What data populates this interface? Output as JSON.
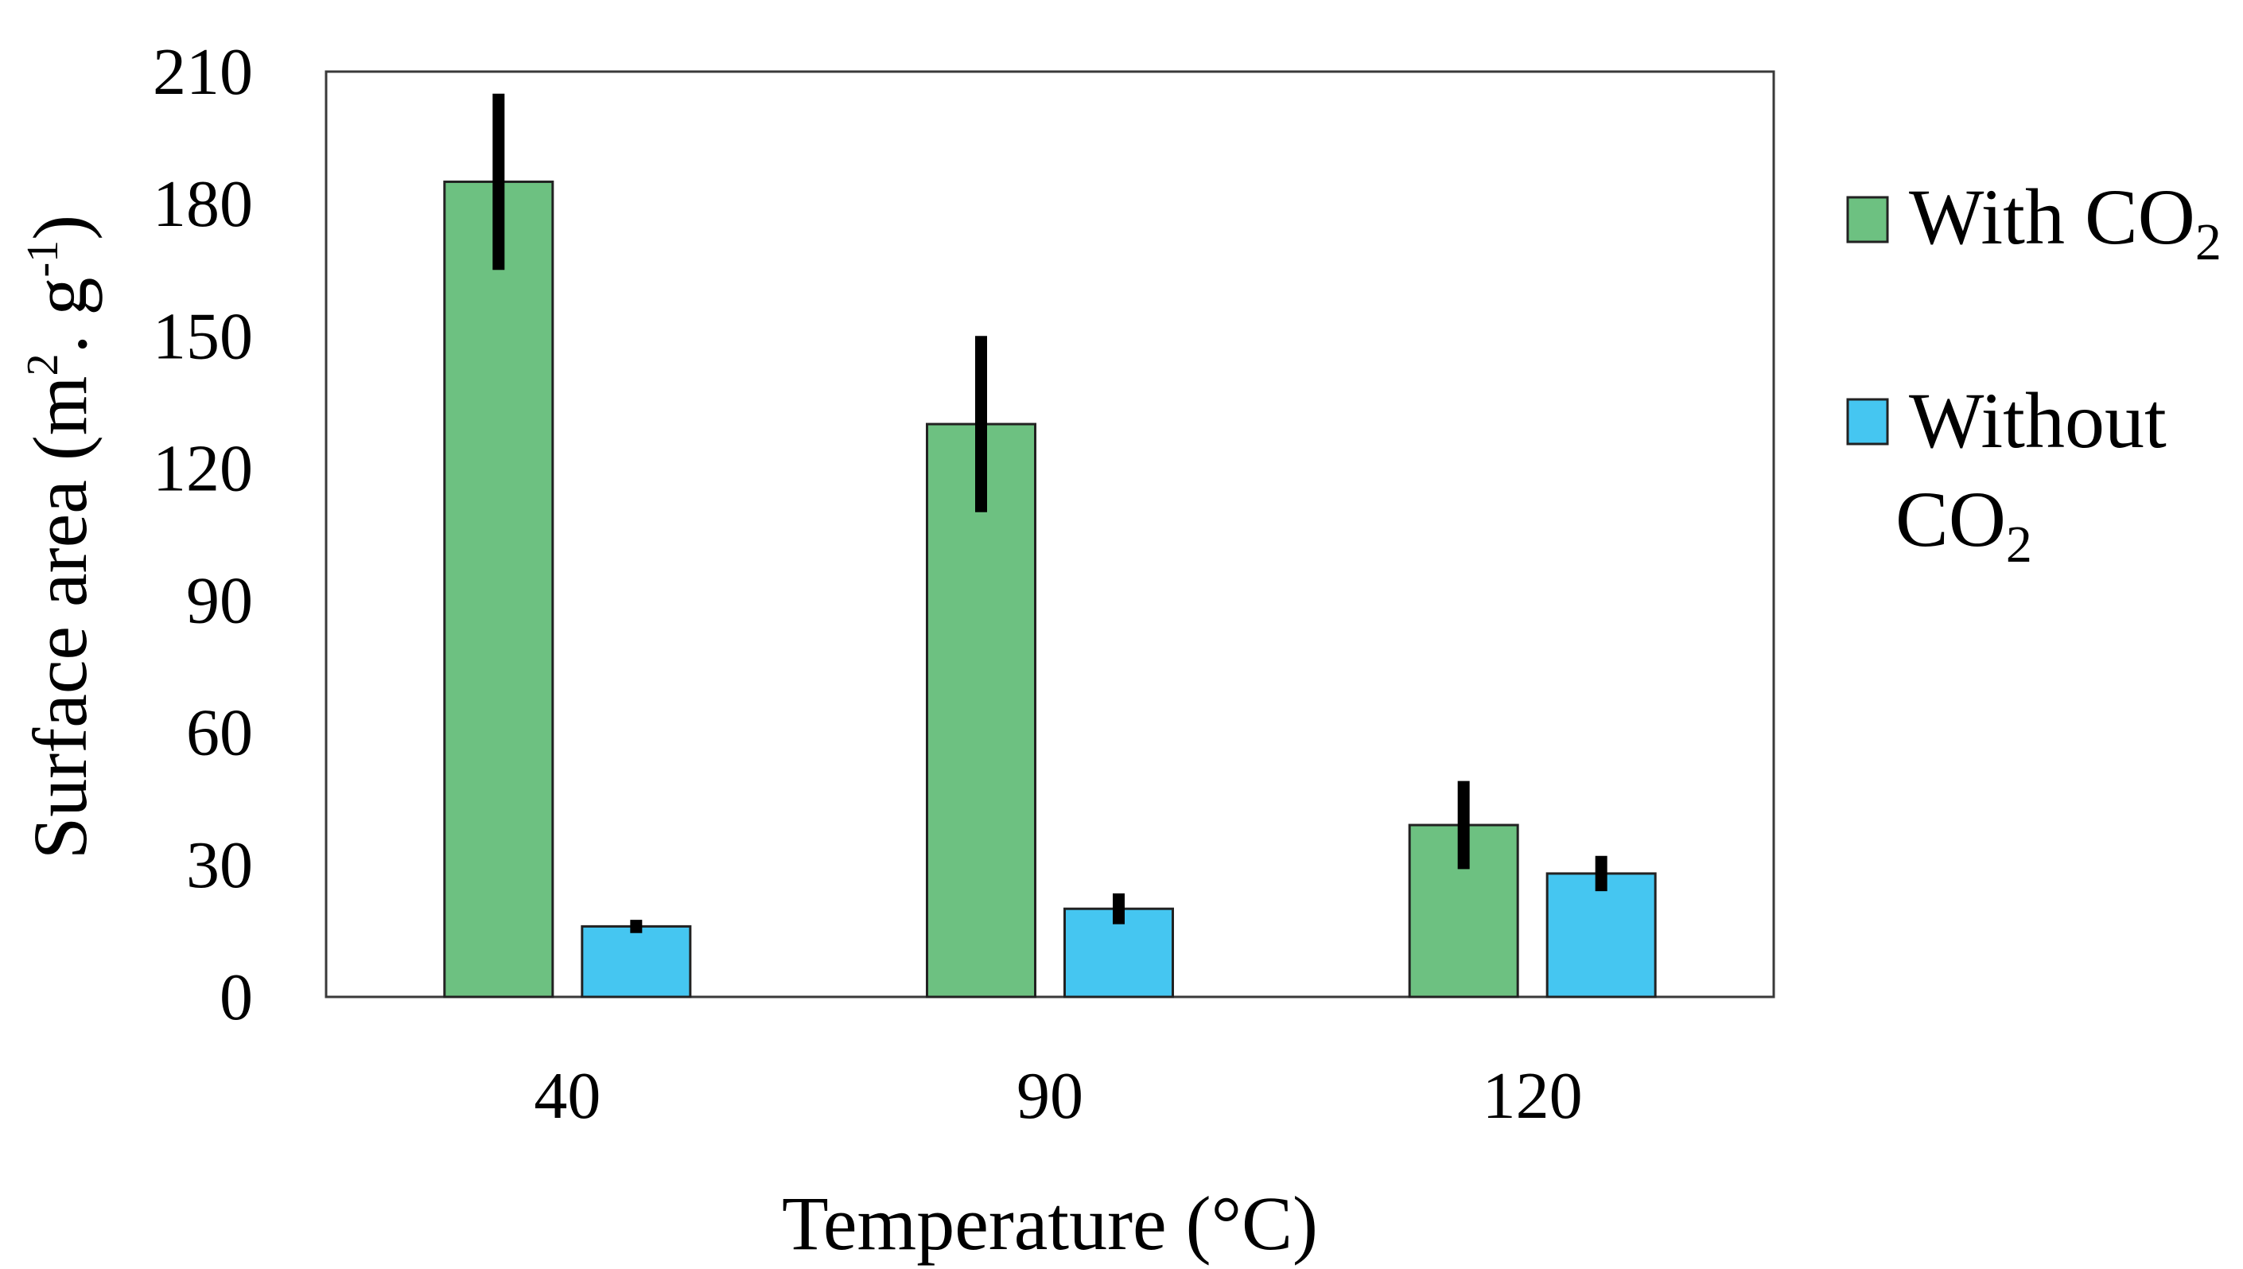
{
  "chart_data": {
    "type": "bar",
    "title": "",
    "xlabel": "Temperature (°C)",
    "ylabel": {
      "prefix": "Surface area (m",
      "sup1": "2",
      "mid": ". g",
      "sup2": "-1",
      "suffix": ")"
    },
    "categories": [
      "40",
      "90",
      "120"
    ],
    "ylim": [
      0,
      210
    ],
    "yticks": [
      0,
      30,
      60,
      90,
      120,
      150,
      180,
      210
    ],
    "grid": false,
    "legend_position": "right",
    "series": [
      {
        "name": "With CO2",
        "label_main": "With CO",
        "label_sub": "2",
        "color": "#6dc181",
        "values": [
          185,
          130,
          39
        ],
        "errors": [
          20,
          20,
          10
        ]
      },
      {
        "name": "Without CO2",
        "label_line1": "Without",
        "label_line2_main": "CO",
        "label_line2_sub": "2",
        "color": "#45c6f1",
        "values": [
          16,
          20,
          28
        ],
        "errors": [
          1.5,
          3.5,
          4
        ]
      }
    ]
  }
}
